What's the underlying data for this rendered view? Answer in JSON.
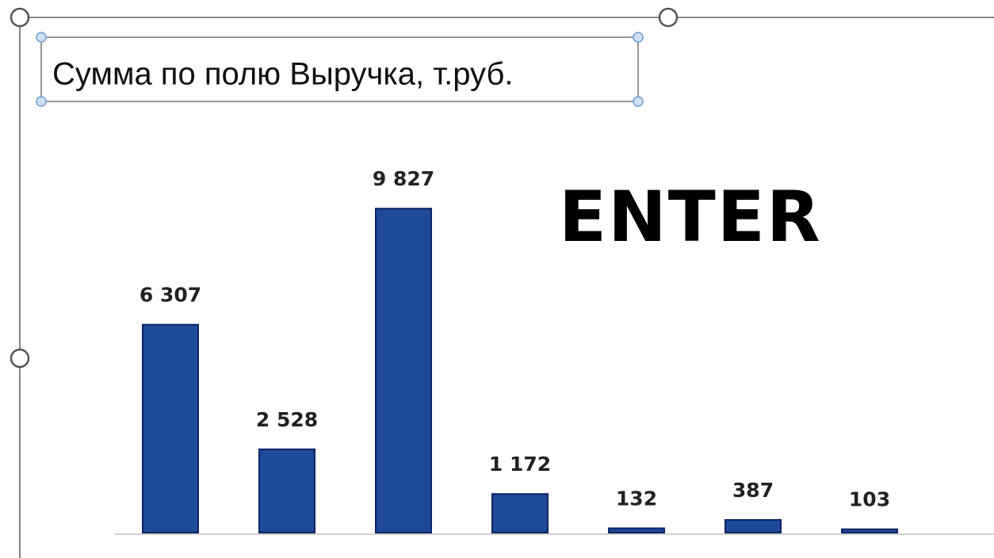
{
  "chart_data": {
    "type": "bar",
    "title": "Сумма по полю Выручка, т.руб.",
    "annotation": "ENTER",
    "categories": [
      null,
      null,
      null,
      null,
      null,
      null,
      null
    ],
    "values": [
      6307,
      2528,
      9827,
      1172,
      132,
      387,
      103
    ],
    "value_labels": [
      "6 307",
      "2 528",
      "9 827",
      "1 172",
      "132",
      "387",
      "103"
    ],
    "color": "#1f4a9a",
    "ylim": [
      0,
      10000
    ]
  }
}
